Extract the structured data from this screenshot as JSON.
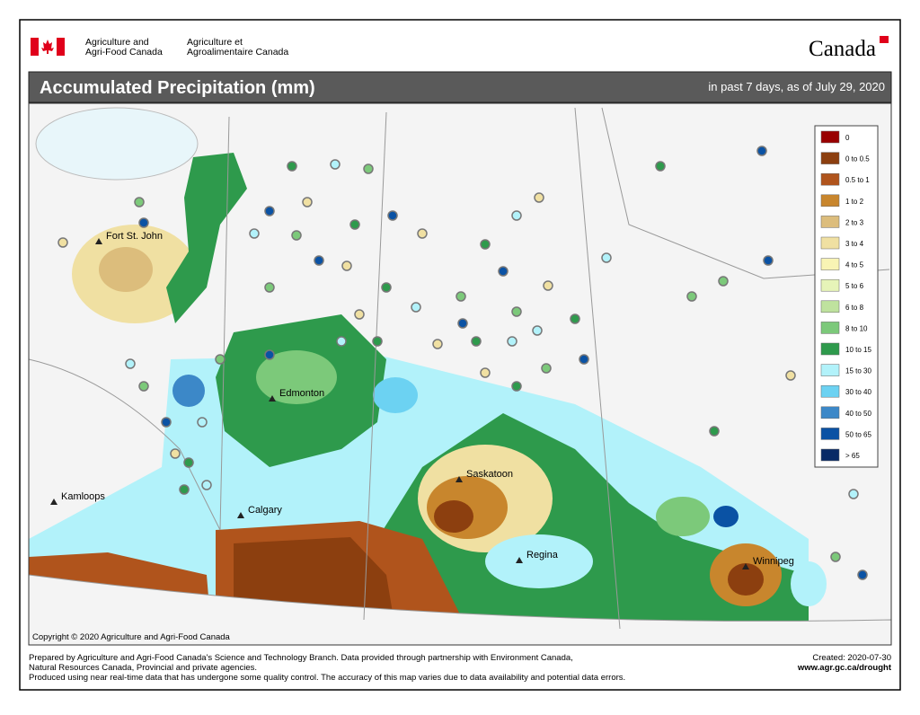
{
  "header": {
    "dept_en": [
      "Agriculture and",
      "Agri-Food Canada"
    ],
    "dept_fr": [
      "Agriculture et",
      "Agroalimentaire Canada"
    ],
    "wordmark": "Canada"
  },
  "title": "Accumulated Precipitation (mm)",
  "subtitle": "in past 7 days, as of July 29, 2020",
  "legend": [
    {
      "label": "0",
      "color": "#990000"
    },
    {
      "label": "0 to 0.5",
      "color": "#8c3f0f"
    },
    {
      "label": "0.5 to 1",
      "color": "#b0541c"
    },
    {
      "label": "1 to 2",
      "color": "#c8862d"
    },
    {
      "label": "2 to 3",
      "color": "#dcbd7c"
    },
    {
      "label": "3 to 4",
      "color": "#f0e0a2"
    },
    {
      "label": "4 to 5",
      "color": "#f8f4b4"
    },
    {
      "label": "5 to 6",
      "color": "#e6f4b8"
    },
    {
      "label": "6 to 8",
      "color": "#bfe29e"
    },
    {
      "label": "8 to 10",
      "color": "#7cc97a"
    },
    {
      "label": "10 to 15",
      "color": "#2e9a4c"
    },
    {
      "label": "15 to 30",
      "color": "#b2f2fa"
    },
    {
      "label": "30 to 40",
      "color": "#6cd2f2"
    },
    {
      "label": "40 to 50",
      "color": "#3c88c8"
    },
    {
      "label": "50 to 65",
      "color": "#0a52a4"
    },
    {
      "label": "> 65",
      "color": "#082a66"
    }
  ],
  "cities": [
    "Fort St. John",
    "Edmonton",
    "Saskatoon",
    "Kamloops",
    "Calgary",
    "Regina",
    "Winnipeg"
  ],
  "copyright": "Copyright © 2020 Agriculture and Agri-Food Canada",
  "footer": {
    "lines": [
      "Prepared by Agriculture and Agri-Food Canada's Science and Technology Branch. Data provided through partnership with Environment Canada,",
      "Natural Resources Canada, Provincial and private agencies.",
      "Produced using near real-time data that has undergone some quality control. The accuracy of this map varies due to data availability and potential data errors."
    ],
    "created": "Created: 2020-07-30",
    "url": "www.agr.gc.ca/drought"
  }
}
